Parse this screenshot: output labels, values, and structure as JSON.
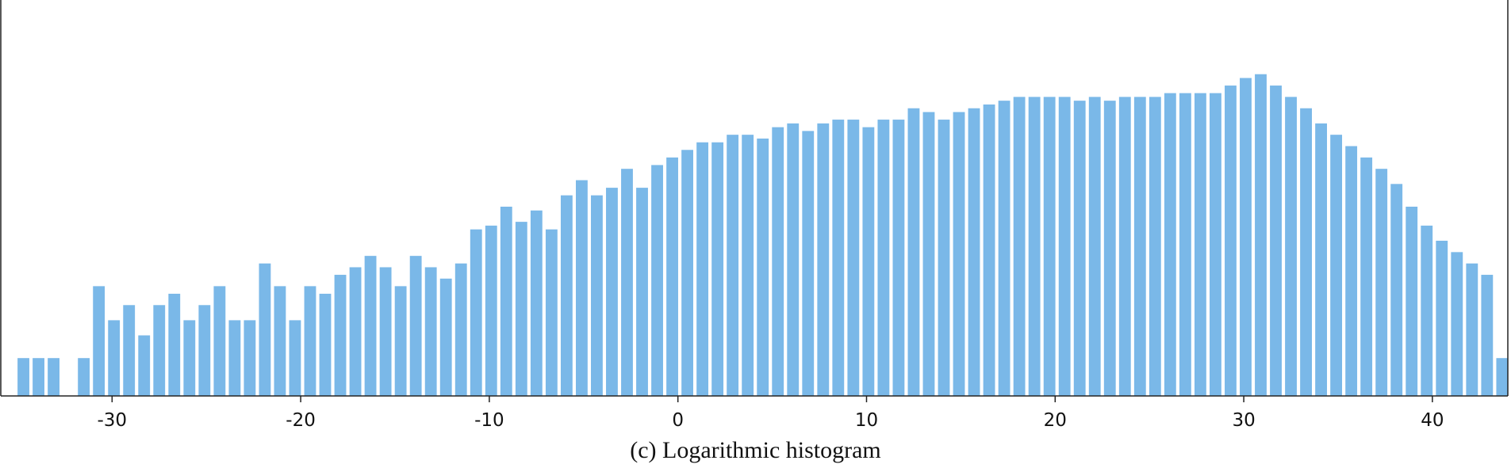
{
  "chart_data": {
    "type": "bar",
    "caption": "(c)  Logarithmic histogram",
    "title": "",
    "xlabel": "",
    "ylabel": "",
    "y_scale": "log",
    "bar_color": "#7ab8e8",
    "axis_color": "#222222",
    "grid": false,
    "legend": "none",
    "xlim": [
      -35.9,
      44.0
    ],
    "ylim": [
      0,
      100
    ],
    "xticks": [
      -30,
      -20,
      -10,
      0,
      10,
      20,
      30,
      40
    ],
    "xtick_labels": [
      "-30",
      "-20",
      "-10",
      "0",
      "10",
      "20",
      "30",
      "40"
    ],
    "bin_width": 0.8,
    "x": [
      -34.7,
      -33.9,
      -33.1,
      -32.3,
      -31.5,
      -30.7,
      -29.9,
      -29.1,
      -28.3,
      -27.5,
      -26.7,
      -25.9,
      -25.1,
      -24.3,
      -23.5,
      -22.7,
      -21.9,
      -21.1,
      -20.3,
      -19.5,
      -18.7,
      -17.9,
      -17.1,
      -16.3,
      -15.5,
      -14.7,
      -13.9,
      -13.1,
      -12.3,
      -11.5,
      -10.7,
      -9.9,
      -9.1,
      -8.3,
      -7.5,
      -6.7,
      -5.9,
      -5.1,
      -4.3,
      -3.5,
      -2.7,
      -1.9,
      -1.1,
      -0.3,
      0.5,
      1.3,
      2.1,
      2.9,
      3.7,
      4.5,
      5.3,
      6.1,
      6.9,
      7.7,
      8.5,
      9.3,
      10.1,
      10.9,
      11.7,
      12.5,
      13.3,
      14.1,
      14.9,
      15.7,
      16.5,
      17.3,
      18.1,
      18.9,
      19.7,
      20.5,
      21.3,
      22.1,
      22.9,
      23.7,
      24.5,
      25.3,
      26.1,
      26.9,
      27.7,
      28.5,
      29.3,
      30.1,
      30.9,
      31.7,
      32.5,
      33.3,
      34.1,
      34.9,
      35.7,
      36.5,
      37.3,
      38.1,
      38.9,
      39.7,
      40.5,
      41.3,
      42.1,
      42.9,
      43.7
    ],
    "values": [
      10,
      10,
      10,
      0,
      10,
      29,
      20,
      24,
      16,
      24,
      27,
      20,
      24,
      29,
      20,
      20,
      35,
      29,
      20,
      29,
      27,
      32,
      34,
      37,
      34,
      29,
      37,
      34,
      31,
      35,
      44,
      45,
      50,
      46,
      49,
      44,
      53,
      57,
      53,
      55,
      60,
      55,
      61,
      63,
      65,
      67,
      67,
      69,
      69,
      68,
      71,
      72,
      70,
      72,
      73,
      73,
      71,
      73,
      73,
      76,
      75,
      73,
      75,
      76,
      77,
      78,
      79,
      79,
      79,
      79,
      78,
      79,
      78,
      79,
      79,
      79,
      80,
      80,
      80,
      80,
      82,
      84,
      85,
      82,
      79,
      76,
      72,
      69,
      66,
      63,
      60,
      56,
      50,
      45,
      41,
      38,
      35,
      32,
      10
    ]
  }
}
